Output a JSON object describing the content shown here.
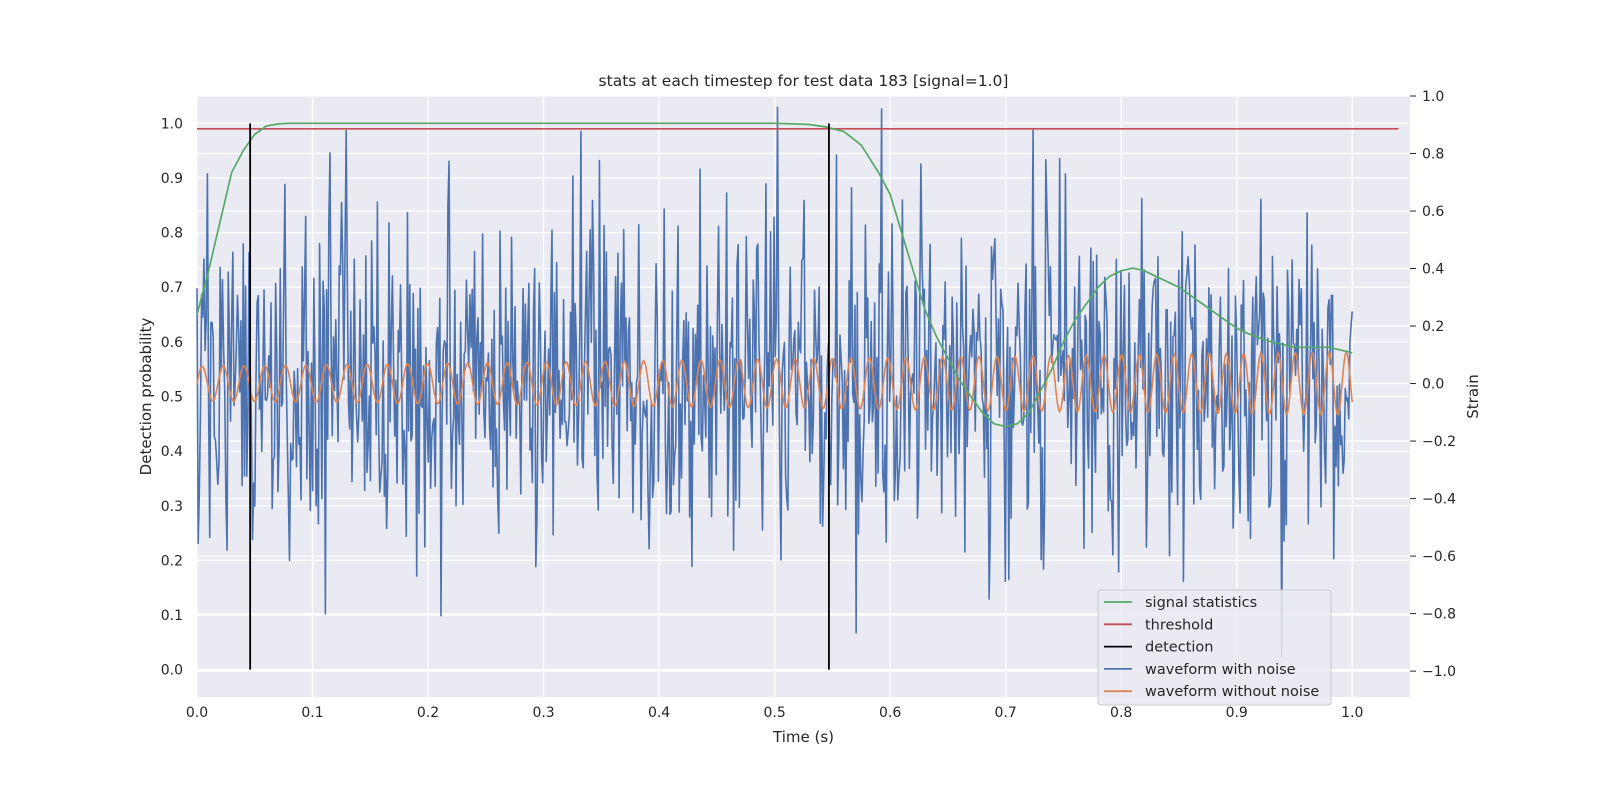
{
  "chart_data": {
    "type": "line",
    "title": "stats at each timestep for test data 183 [signal=1.0]",
    "xlabel": "Time (s)",
    "ylabel": "Detection probability",
    "ylabel_right": "Strain",
    "xlim": [
      0.0,
      1.05
    ],
    "ylim": [
      -0.05,
      1.05
    ],
    "ylim_right": [
      -1.09,
      1.0
    ],
    "xticks": [
      "0.0",
      "0.1",
      "0.2",
      "0.3",
      "0.4",
      "0.5",
      "0.6",
      "0.7",
      "0.8",
      "0.9",
      "1.0"
    ],
    "yticks": [
      "0.0",
      "0.1",
      "0.2",
      "0.3",
      "0.4",
      "0.5",
      "0.6",
      "0.7",
      "0.8",
      "0.9",
      "1.0"
    ],
    "yticks_right": [
      "−1.0",
      "−0.8",
      "−0.6",
      "−0.4",
      "−0.2",
      "0.0",
      "0.2",
      "0.4",
      "0.6",
      "0.8",
      "1.0"
    ],
    "grid": true,
    "legend_position": "bottom-right",
    "series": [
      {
        "name": "signal statistics",
        "axis": "left",
        "color": "#55a868",
        "x": [
          0.0,
          0.01,
          0.02,
          0.03,
          0.04,
          0.05,
          0.06,
          0.07,
          0.08,
          0.1,
          0.2,
          0.3,
          0.4,
          0.5,
          0.53,
          0.545,
          0.56,
          0.575,
          0.59,
          0.6,
          0.61,
          0.62,
          0.63,
          0.64,
          0.65,
          0.66,
          0.67,
          0.68,
          0.69,
          0.7,
          0.71,
          0.72,
          0.73,
          0.74,
          0.75,
          0.76,
          0.77,
          0.78,
          0.79,
          0.8,
          0.81,
          0.82,
          0.83,
          0.84,
          0.85,
          0.86,
          0.87,
          0.88,
          0.89,
          0.9,
          0.91,
          0.92,
          0.93,
          0.94,
          0.95,
          0.96,
          0.97,
          0.98,
          0.99,
          1.0
        ],
        "y": [
          0.65,
          0.73,
          0.82,
          0.91,
          0.95,
          0.98,
          0.995,
          0.999,
          1.0,
          1.0,
          1.0,
          1.0,
          1.0,
          1.0,
          0.998,
          0.993,
          0.985,
          0.96,
          0.91,
          0.87,
          0.8,
          0.73,
          0.66,
          0.61,
          0.57,
          0.53,
          0.5,
          0.47,
          0.45,
          0.445,
          0.45,
          0.47,
          0.51,
          0.55,
          0.6,
          0.64,
          0.67,
          0.7,
          0.72,
          0.73,
          0.735,
          0.73,
          0.72,
          0.71,
          0.7,
          0.685,
          0.67,
          0.655,
          0.64,
          0.625,
          0.615,
          0.607,
          0.6,
          0.595,
          0.59,
          0.59,
          0.59,
          0.59,
          0.585,
          0.58
        ]
      },
      {
        "name": "threshold",
        "axis": "left",
        "color": "#c44e52",
        "x": [
          0.0,
          1.04
        ],
        "y": [
          0.99,
          0.99
        ]
      },
      {
        "name": "detection",
        "axis": "left",
        "color": "#000000",
        "vlines": [
          0.046,
          0.547
        ],
        "ymin": 0.0,
        "ymax": 1.0
      },
      {
        "name": "waveform with noise",
        "axis": "right",
        "color": "#4c72b0",
        "x_range": [
          0.0,
          1.0
        ],
        "n_points": 1000,
        "amplitude": 0.3
      },
      {
        "name": "waveform without noise",
        "axis": "right",
        "color": "#dd8452",
        "x_range": [
          0.0,
          1.0
        ],
        "n_cycles": 55,
        "amplitude_start": 0.06,
        "amplitude_end": 0.11
      }
    ]
  }
}
